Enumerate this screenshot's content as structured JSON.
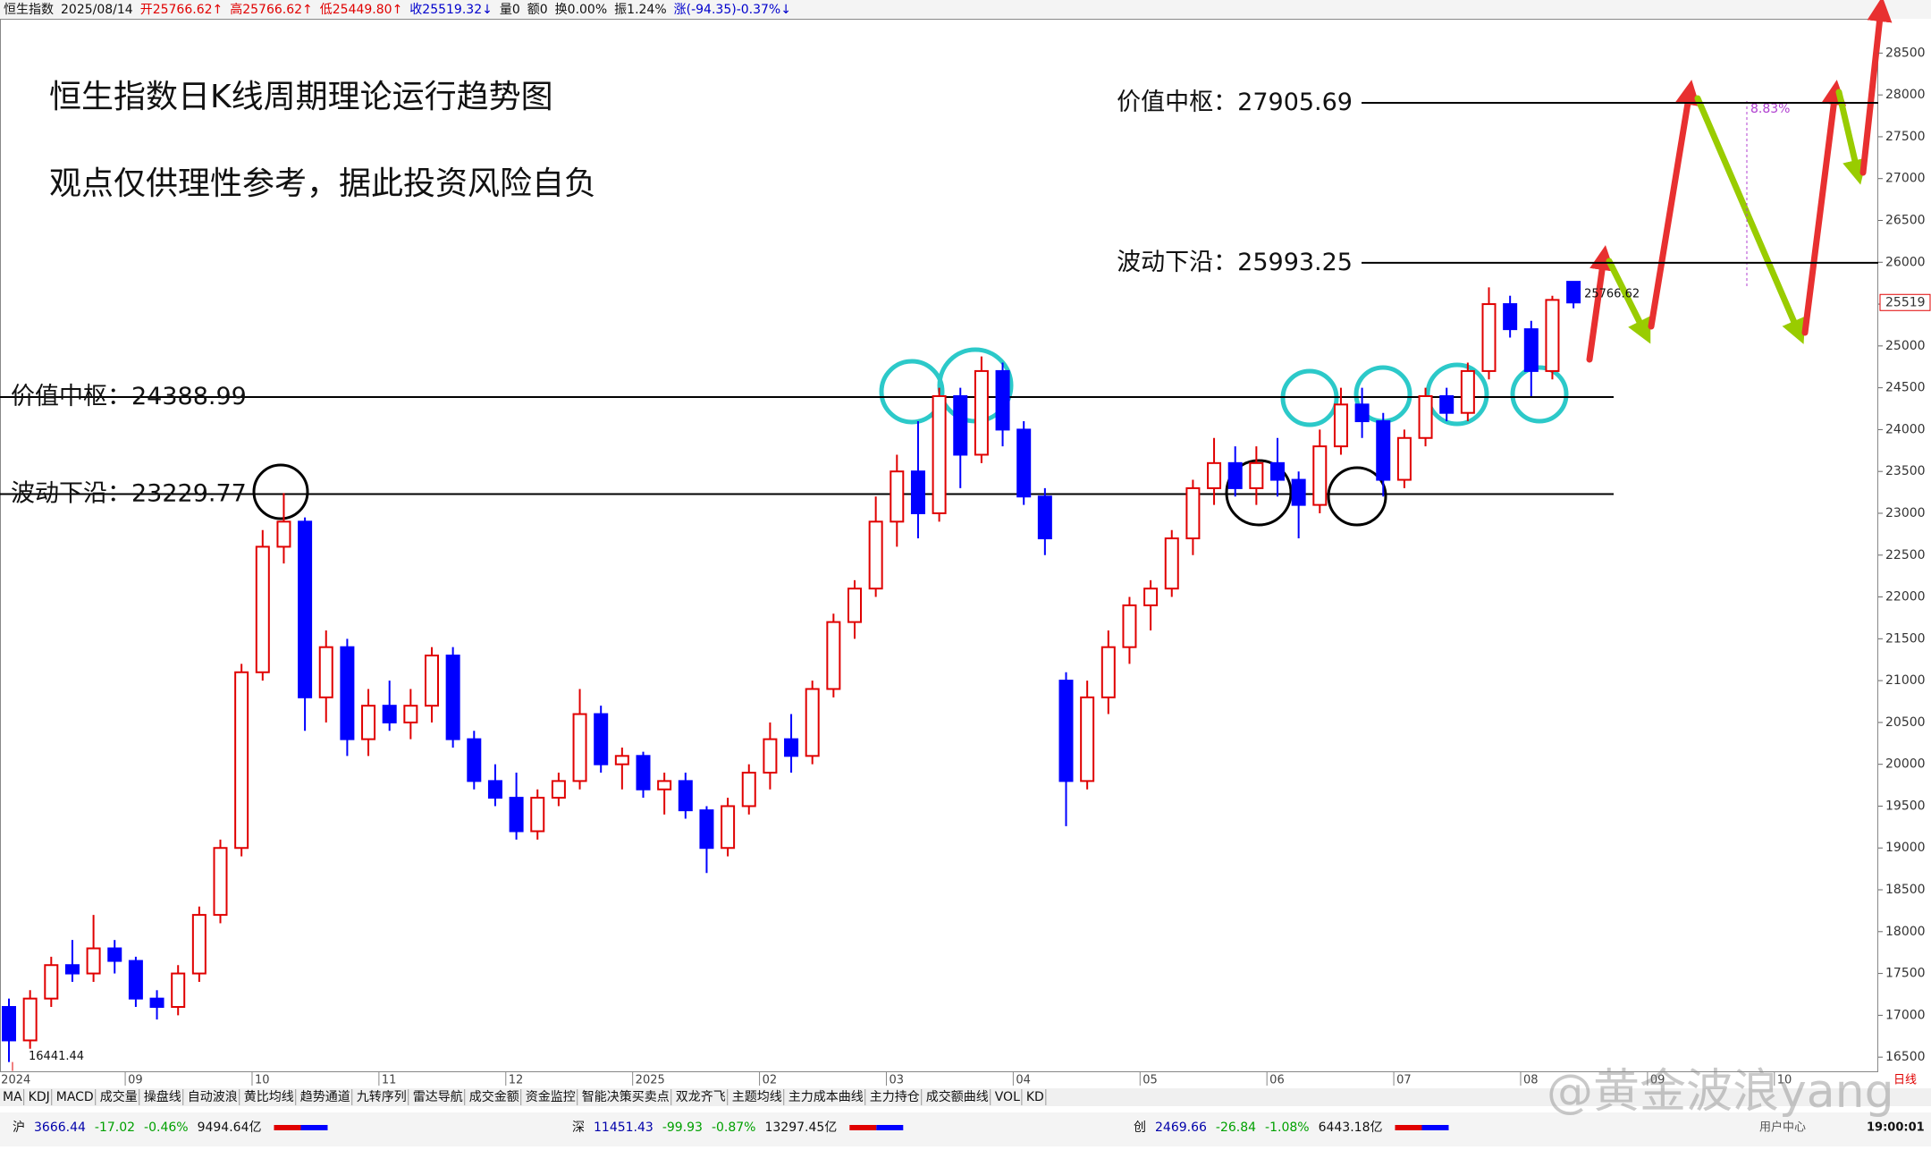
{
  "header": {
    "items": [
      "恒生指数",
      "2025/08/14",
      "开25766.62↑",
      "高25766.62↑",
      "低25449.80↑",
      "收25519.32↓",
      "量0",
      "额0",
      "换0.00%",
      "振1.24%",
      "涨(-94.35)-0.37%↓"
    ]
  },
  "chart_data": {
    "type": "candlestick",
    "title": "恒生指数日K线周期理论运行趋势图",
    "subtitle": "观点仅供理性参考，据此投资风险自负",
    "categories": [
      "2024",
      null,
      null,
      null,
      null,
      null,
      "09",
      null,
      null,
      null,
      null,
      null,
      "10",
      null,
      null,
      null,
      null,
      null,
      "11",
      null,
      null,
      null,
      null,
      null,
      "12",
      null,
      null,
      null,
      null,
      null,
      "2025",
      null,
      null,
      null,
      null,
      null,
      "02",
      null,
      null,
      null,
      null,
      null,
      "03",
      null,
      null,
      null,
      null,
      null,
      "04",
      null,
      null,
      null,
      null,
      null,
      "05",
      null,
      null,
      null,
      null,
      null,
      "06",
      null,
      null,
      null,
      null,
      null,
      "07",
      null,
      null,
      null,
      null,
      null,
      "08",
      null,
      null,
      null,
      null,
      null,
      "09",
      null,
      null,
      null,
      null,
      null,
      "10",
      null,
      null,
      null,
      null
    ],
    "open": [
      17100,
      16700,
      17200,
      17600,
      17500,
      17800,
      17650,
      17200,
      17100,
      17500,
      18200,
      19000,
      21100,
      22600,
      22900,
      20800,
      21400,
      20300,
      20700,
      20500,
      20700,
      21300,
      20300,
      19800,
      19600,
      19200,
      19600,
      19800,
      20600,
      20000,
      20100,
      19700,
      19800,
      19450,
      19000,
      19500,
      19900,
      20300,
      20100,
      20900,
      21700,
      22100,
      22900,
      23500,
      23000,
      24400,
      23700,
      24700,
      24000,
      23200,
      21000,
      19800,
      20800,
      21400,
      21900,
      22100,
      22700,
      23300,
      23600,
      23300,
      23600,
      23400,
      23100,
      23800,
      24300,
      24100,
      23400,
      23900,
      24400,
      24200,
      24700,
      25500,
      25200,
      24700,
      25766.62,
      null,
      null,
      null,
      null,
      null,
      null,
      null,
      null,
      null,
      null,
      null,
      null,
      null,
      null
    ],
    "high": [
      17200,
      17300,
      17700,
      17900,
      18200,
      17900,
      17700,
      17300,
      17600,
      18300,
      19100,
      21200,
      22800,
      23241.74,
      22950,
      21600,
      21500,
      20900,
      21000,
      20900,
      21400,
      21400,
      20400,
      20000,
      19900,
      19700,
      19900,
      20900,
      20700,
      20200,
      20150,
      19900,
      19900,
      19500,
      19600,
      20000,
      20500,
      20600,
      21000,
      21800,
      22200,
      23200,
      23700,
      24100,
      24500,
      24500,
      24874,
      24800,
      24100,
      23300,
      21100,
      21000,
      21600,
      22000,
      22200,
      22800,
      23400,
      23900,
      23800,
      23800,
      23900,
      23500,
      24000,
      24500,
      24500,
      24200,
      24000,
      24500,
      24500,
      24800,
      25700,
      25600,
      25300,
      25600,
      25766.62,
      null,
      null,
      null,
      null,
      null,
      null,
      null,
      null,
      null,
      null,
      null,
      null,
      null,
      null
    ],
    "low": [
      16441.44,
      16600,
      17100,
      17400,
      17400,
      17500,
      17100,
      16950,
      17000,
      17400,
      18100,
      18900,
      21000,
      22400,
      20400,
      20500,
      20100,
      20100,
      20400,
      20300,
      20500,
      20200,
      19700,
      19500,
      19100,
      19100,
      19500,
      19700,
      19900,
      19700,
      19600,
      19400,
      19350,
      18700,
      18900,
      19400,
      19700,
      19900,
      20000,
      20800,
      21500,
      22000,
      22600,
      22700,
      22900,
      23300,
      23600,
      23800,
      23100,
      22500,
      19260,
      19700,
      20600,
      21200,
      21600,
      22000,
      22500,
      23100,
      23200,
      23100,
      23200,
      22700,
      23000,
      23700,
      23900,
      23200,
      23300,
      23800,
      24100,
      24100,
      24600,
      25100,
      24400,
      24600,
      25449.8,
      null,
      null,
      null,
      null,
      null,
      null,
      null,
      null,
      null,
      null,
      null,
      null,
      null,
      null
    ],
    "close": [
      16700,
      17200,
      17600,
      17500,
      17800,
      17650,
      17200,
      17100,
      17500,
      18200,
      19000,
      21100,
      22600,
      22900,
      20800,
      21400,
      20300,
      20700,
      20500,
      20700,
      21300,
      20300,
      19800,
      19600,
      19200,
      19600,
      19800,
      20600,
      20000,
      20100,
      19700,
      19800,
      19450,
      19000,
      19500,
      19900,
      20300,
      20100,
      20900,
      21700,
      22100,
      22900,
      23500,
      23000,
      24400,
      23700,
      24700,
      24000,
      23200,
      22700,
      19800,
      20800,
      21400,
      21900,
      22100,
      22700,
      23300,
      23600,
      23300,
      23600,
      23400,
      23100,
      23800,
      24300,
      24100,
      23400,
      23900,
      24400,
      24200,
      24700,
      25500,
      25200,
      24700,
      25550,
      25519.32,
      null,
      null,
      null,
      null,
      null,
      null,
      null,
      null,
      null,
      null,
      null,
      null,
      null,
      null
    ],
    "up_color": "#e00000",
    "down_color": "#0000ff",
    "ylim": [
      16320,
      28910
    ],
    "yticks": [
      16500,
      17000,
      17500,
      18000,
      18500,
      19000,
      19500,
      20000,
      20500,
      21000,
      21500,
      22000,
      22500,
      23000,
      23500,
      24000,
      24500,
      25000,
      25500,
      26000,
      26500,
      27000,
      27500,
      28000,
      28500
    ],
    "levels": [
      {
        "label": "价值中枢：",
        "value": 24388.99
      },
      {
        "label": "波动下沿：",
        "value": 23229.77
      }
    ],
    "projected_levels": [
      {
        "label": "价值中枢：",
        "value": 27905.69
      },
      {
        "label": "波动下沿：",
        "value": 25993.25
      }
    ],
    "annotation": "8.83%",
    "current_price": {
      "value": 25519.32,
      "label": "25519"
    },
    "period": "日线"
  },
  "toolbar": {
    "tabs": [
      "MA",
      "KDJ",
      "MACD",
      "成交量",
      "操盘线",
      "自动波浪",
      "黄比均线",
      "趋势通道",
      "九转序列",
      "雷达导航",
      "成交金额",
      "资金监控",
      "智能决策买卖点",
      "双龙齐飞",
      "主题均线",
      "主力成本曲线",
      "主力持仓",
      "成交额曲线",
      "VOL",
      "KD"
    ]
  },
  "status_bar": {
    "markets": [
      [
        "沪",
        "3666.44",
        "-17.02",
        "-0.46%",
        "9494.64亿"
      ],
      [
        "深",
        "11451.43",
        "-99.93",
        "-0.87%",
        "13297.45亿"
      ],
      [
        "创",
        "2469.66",
        "-26.84",
        "-1.08%",
        "6443.18亿"
      ]
    ],
    "user_center": "用户中心",
    "time": "19:00:01"
  },
  "watermark": "@黄金波浪yang"
}
